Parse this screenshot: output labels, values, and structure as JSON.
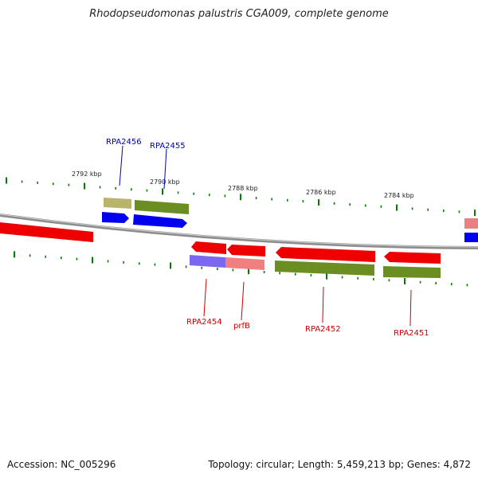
{
  "title": "Rhodopseudomonas palustris CGA009, complete genome",
  "footer": {
    "accession": "Accession: NC_005296",
    "summary": "Topology: circular; Length: 5,459,213 bp; Genes: 4,872"
  },
  "colors": {
    "forward_gene": "#ff0000",
    "reverse_gene": "#ff0000",
    "cds_green": "#6b8e23",
    "cds_blue": "#0000ff",
    "backbone": "#888888",
    "ticks": "#008000",
    "label_top": "#0000aa",
    "label_bottom": "#cc0000"
  },
  "scale_labels": [
    "2792 kbp",
    "2790 kbp",
    "2788 kbp",
    "2786 kbp",
    "2784 kbp"
  ],
  "gene_labels": {
    "top": [
      "RPA2456",
      "RPA2455"
    ],
    "bottom": [
      "RPA2454",
      "prfB",
      "RPA2452",
      "RPA2451"
    ]
  }
}
